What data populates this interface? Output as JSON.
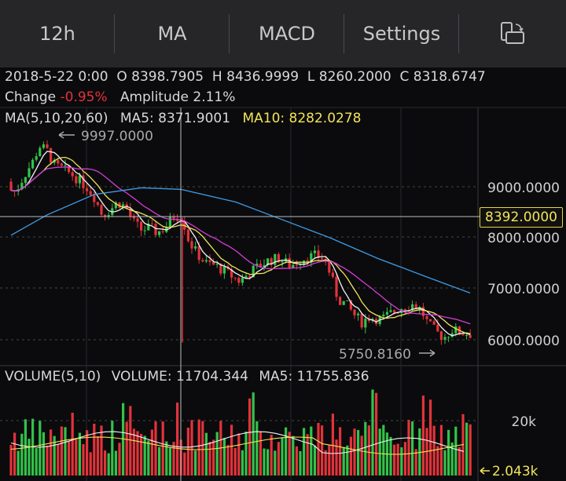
{
  "tabs": [
    {
      "label": "12h"
    },
    {
      "label": "MA"
    },
    {
      "label": "MACD"
    },
    {
      "label": "Settings"
    }
  ],
  "icons": {
    "switch": "screen-rotate-icon"
  },
  "ohlc": {
    "date": "2018-5-22 0:00",
    "o_label": "O",
    "open": "8398.7905",
    "h_label": "H",
    "high": "8436.9999",
    "l_label": "L",
    "low": "8260.2000",
    "c_label": "C",
    "close": "8318.6747",
    "change_label": "Change",
    "change": "-0.95%",
    "amplitude_label": "Amplitude",
    "amplitude": "2.11%"
  },
  "ma_legend": {
    "title": "MA(5,10,20,60)",
    "ma5": "MA5: 8371.9001",
    "ma10": "MA10: 8282.0278"
  },
  "volume_legend": {
    "title": "VOLUME(5,10)",
    "volume": "VOLUME: 11704.344",
    "ma5": "MA5: 11755.836"
  },
  "price_axis": [
    "9000.0000",
    "8000.0000",
    "7000.0000",
    "6000.0000"
  ],
  "crosshair_price": "8392.0000",
  "high_marker": "9997.0000",
  "low_marker": "5750.8160",
  "volume_axis": {
    "top": "20k",
    "current": "2.043k"
  },
  "colors": {
    "up": "#33c24a",
    "down": "#e2333a",
    "ma5": "#f3f3f3",
    "ma10": "#f1e45a",
    "ma20": "#d43dd6",
    "ma60": "#3f9be3"
  }
}
